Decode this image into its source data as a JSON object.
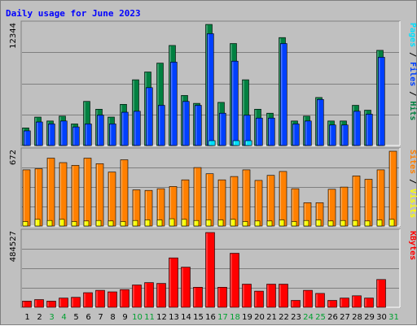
{
  "chart_data": {
    "type": "bar",
    "title": "Daily usage for June 2023",
    "days": [
      "1",
      "2",
      "3",
      "4",
      "5",
      "6",
      "7",
      "8",
      "9",
      "10",
      "11",
      "12",
      "13",
      "14",
      "15",
      "16",
      "17",
      "18",
      "19",
      "20",
      "21",
      "22",
      "23",
      "24",
      "25",
      "26",
      "27",
      "28",
      "29",
      "30",
      "31"
    ],
    "weekend_days": [
      "3",
      "4",
      "10",
      "11",
      "17",
      "18",
      "24",
      "25",
      "31"
    ],
    "panels": [
      {
        "name": "hits-files-pages",
        "max_label": "12344",
        "ylim": [
          0,
          12344
        ],
        "axis_label": [
          "Pages",
          " / ",
          "Files",
          " / ",
          "Hits"
        ],
        "axis_label_colors": [
          "#00e0ff",
          "#000000",
          "#0040ff",
          "#000000",
          "#008040"
        ],
        "series": [
          {
            "name": "Hits",
            "color": "#008040",
            "values": [
              1800,
              2900,
              2500,
              3000,
              2200,
              4500,
              3700,
              2900,
              4200,
              6700,
              7500,
              8400,
              10200,
              5100,
              4300,
              12344,
              4400,
              10400,
              6700,
              3700,
              3300,
              11000,
              2500,
              3000,
              4900,
              2500,
              2500,
              4100,
              3600,
              9700,
              0
            ]
          },
          {
            "name": "Files",
            "color": "#0040ff",
            "values": [
              1500,
              2400,
              2200,
              2500,
              1900,
              2200,
              3100,
              2200,
              3400,
              3500,
              5900,
              4100,
              8500,
              4500,
              4100,
              11400,
              3300,
              8600,
              3100,
              2800,
              2800,
              10400,
              2200,
              2500,
              4700,
              2100,
              2100,
              3500,
              3200,
              9000,
              0
            ]
          },
          {
            "name": "Pages",
            "color": "#00e0ff",
            "values": [
              0,
              0,
              0,
              0,
              0,
              0,
              0,
              0,
              0,
              0,
              0,
              0,
              0,
              0,
              0,
              500,
              0,
              500,
              500,
              0,
              0,
              0,
              0,
              0,
              0,
              0,
              0,
              0,
              0,
              0,
              0
            ]
          }
        ]
      },
      {
        "name": "visits-sites",
        "max_label": "672",
        "ylim": [
          0,
          672
        ],
        "axis_label": [
          "Sites",
          " / ",
          "Visits"
        ],
        "axis_label_colors": [
          "#ff8000",
          "#000000",
          "#ffff00"
        ],
        "series": [
          {
            "name": "Visits",
            "color": "#ff8000",
            "values": [
              505,
              515,
              610,
              570,
              545,
              610,
              560,
              485,
              595,
              325,
              320,
              335,
              355,
              415,
              525,
              470,
              415,
              445,
              505,
              410,
              455,
              490,
              335,
              210,
              210,
              330,
              350,
              450,
              420,
              505,
              672
            ]
          },
          {
            "name": "Sites",
            "color": "#ffff00",
            "values": [
              40,
              60,
              50,
              60,
              40,
              45,
              50,
              45,
              40,
              50,
              55,
              55,
              65,
              60,
              50,
              55,
              55,
              60,
              40,
              45,
              45,
              55,
              40,
              50,
              55,
              45,
              50,
              50,
              45,
              55,
              60
            ]
          }
        ]
      },
      {
        "name": "kbytes",
        "max_label": "484527",
        "ylim": [
          0,
          484527
        ],
        "axis_label": [
          "KBytes"
        ],
        "axis_label_colors": [
          "#ff0000"
        ],
        "series": [
          {
            "name": "KBytes",
            "color": "#ff0000",
            "values": [
              40000,
              50000,
              40000,
              60000,
              65000,
              95000,
              110000,
              100000,
              115000,
              145000,
              160000,
              155000,
              320000,
              260000,
              130000,
              484527,
              130000,
              350000,
              150000,
              105000,
              150000,
              150000,
              45000,
              110000,
              90000,
              45000,
              60000,
              75000,
              60000,
              180000,
              0
            ]
          }
        ]
      }
    ]
  },
  "colors": {
    "background": "#c0c0c0",
    "plot_area": "#c0c0c0",
    "title": "#0000ff",
    "weekday": "#000000",
    "weekend": "#00a030",
    "gridline": "#7f7f7f"
  }
}
